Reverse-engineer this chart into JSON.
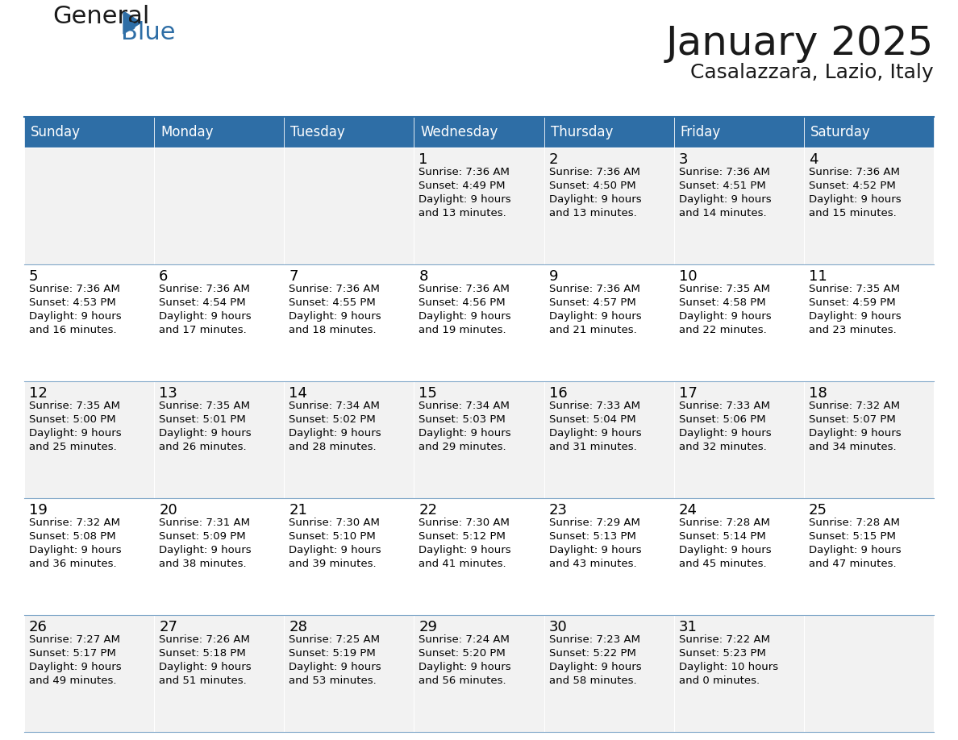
{
  "title": "January 2025",
  "subtitle": "Casalazzara, Lazio, Italy",
  "header_color": "#2E6EA6",
  "header_text_color": "#FFFFFF",
  "cell_bg_even": "#F2F2F2",
  "cell_bg_odd": "#FFFFFF",
  "text_color": "#000000",
  "days_of_week": [
    "Sunday",
    "Monday",
    "Tuesday",
    "Wednesday",
    "Thursday",
    "Friday",
    "Saturday"
  ],
  "weeks": [
    [
      {
        "day": "",
        "info": ""
      },
      {
        "day": "",
        "info": ""
      },
      {
        "day": "",
        "info": ""
      },
      {
        "day": "1",
        "info": "Sunrise: 7:36 AM\nSunset: 4:49 PM\nDaylight: 9 hours\nand 13 minutes."
      },
      {
        "day": "2",
        "info": "Sunrise: 7:36 AM\nSunset: 4:50 PM\nDaylight: 9 hours\nand 13 minutes."
      },
      {
        "day": "3",
        "info": "Sunrise: 7:36 AM\nSunset: 4:51 PM\nDaylight: 9 hours\nand 14 minutes."
      },
      {
        "day": "4",
        "info": "Sunrise: 7:36 AM\nSunset: 4:52 PM\nDaylight: 9 hours\nand 15 minutes."
      }
    ],
    [
      {
        "day": "5",
        "info": "Sunrise: 7:36 AM\nSunset: 4:53 PM\nDaylight: 9 hours\nand 16 minutes."
      },
      {
        "day": "6",
        "info": "Sunrise: 7:36 AM\nSunset: 4:54 PM\nDaylight: 9 hours\nand 17 minutes."
      },
      {
        "day": "7",
        "info": "Sunrise: 7:36 AM\nSunset: 4:55 PM\nDaylight: 9 hours\nand 18 minutes."
      },
      {
        "day": "8",
        "info": "Sunrise: 7:36 AM\nSunset: 4:56 PM\nDaylight: 9 hours\nand 19 minutes."
      },
      {
        "day": "9",
        "info": "Sunrise: 7:36 AM\nSunset: 4:57 PM\nDaylight: 9 hours\nand 21 minutes."
      },
      {
        "day": "10",
        "info": "Sunrise: 7:35 AM\nSunset: 4:58 PM\nDaylight: 9 hours\nand 22 minutes."
      },
      {
        "day": "11",
        "info": "Sunrise: 7:35 AM\nSunset: 4:59 PM\nDaylight: 9 hours\nand 23 minutes."
      }
    ],
    [
      {
        "day": "12",
        "info": "Sunrise: 7:35 AM\nSunset: 5:00 PM\nDaylight: 9 hours\nand 25 minutes."
      },
      {
        "day": "13",
        "info": "Sunrise: 7:35 AM\nSunset: 5:01 PM\nDaylight: 9 hours\nand 26 minutes."
      },
      {
        "day": "14",
        "info": "Sunrise: 7:34 AM\nSunset: 5:02 PM\nDaylight: 9 hours\nand 28 minutes."
      },
      {
        "day": "15",
        "info": "Sunrise: 7:34 AM\nSunset: 5:03 PM\nDaylight: 9 hours\nand 29 minutes."
      },
      {
        "day": "16",
        "info": "Sunrise: 7:33 AM\nSunset: 5:04 PM\nDaylight: 9 hours\nand 31 minutes."
      },
      {
        "day": "17",
        "info": "Sunrise: 7:33 AM\nSunset: 5:06 PM\nDaylight: 9 hours\nand 32 minutes."
      },
      {
        "day": "18",
        "info": "Sunrise: 7:32 AM\nSunset: 5:07 PM\nDaylight: 9 hours\nand 34 minutes."
      }
    ],
    [
      {
        "day": "19",
        "info": "Sunrise: 7:32 AM\nSunset: 5:08 PM\nDaylight: 9 hours\nand 36 minutes."
      },
      {
        "day": "20",
        "info": "Sunrise: 7:31 AM\nSunset: 5:09 PM\nDaylight: 9 hours\nand 38 minutes."
      },
      {
        "day": "21",
        "info": "Sunrise: 7:30 AM\nSunset: 5:10 PM\nDaylight: 9 hours\nand 39 minutes."
      },
      {
        "day": "22",
        "info": "Sunrise: 7:30 AM\nSunset: 5:12 PM\nDaylight: 9 hours\nand 41 minutes."
      },
      {
        "day": "23",
        "info": "Sunrise: 7:29 AM\nSunset: 5:13 PM\nDaylight: 9 hours\nand 43 minutes."
      },
      {
        "day": "24",
        "info": "Sunrise: 7:28 AM\nSunset: 5:14 PM\nDaylight: 9 hours\nand 45 minutes."
      },
      {
        "day": "25",
        "info": "Sunrise: 7:28 AM\nSunset: 5:15 PM\nDaylight: 9 hours\nand 47 minutes."
      }
    ],
    [
      {
        "day": "26",
        "info": "Sunrise: 7:27 AM\nSunset: 5:17 PM\nDaylight: 9 hours\nand 49 minutes."
      },
      {
        "day": "27",
        "info": "Sunrise: 7:26 AM\nSunset: 5:18 PM\nDaylight: 9 hours\nand 51 minutes."
      },
      {
        "day": "28",
        "info": "Sunrise: 7:25 AM\nSunset: 5:19 PM\nDaylight: 9 hours\nand 53 minutes."
      },
      {
        "day": "29",
        "info": "Sunrise: 7:24 AM\nSunset: 5:20 PM\nDaylight: 9 hours\nand 56 minutes."
      },
      {
        "day": "30",
        "info": "Sunrise: 7:23 AM\nSunset: 5:22 PM\nDaylight: 9 hours\nand 58 minutes."
      },
      {
        "day": "31",
        "info": "Sunrise: 7:22 AM\nSunset: 5:23 PM\nDaylight: 10 hours\nand 0 minutes."
      },
      {
        "day": "",
        "info": ""
      }
    ]
  ],
  "logo_text_general": "General",
  "logo_text_blue": "Blue",
  "logo_color_general": "#1a1a1a",
  "logo_color_blue": "#2E6EA6"
}
